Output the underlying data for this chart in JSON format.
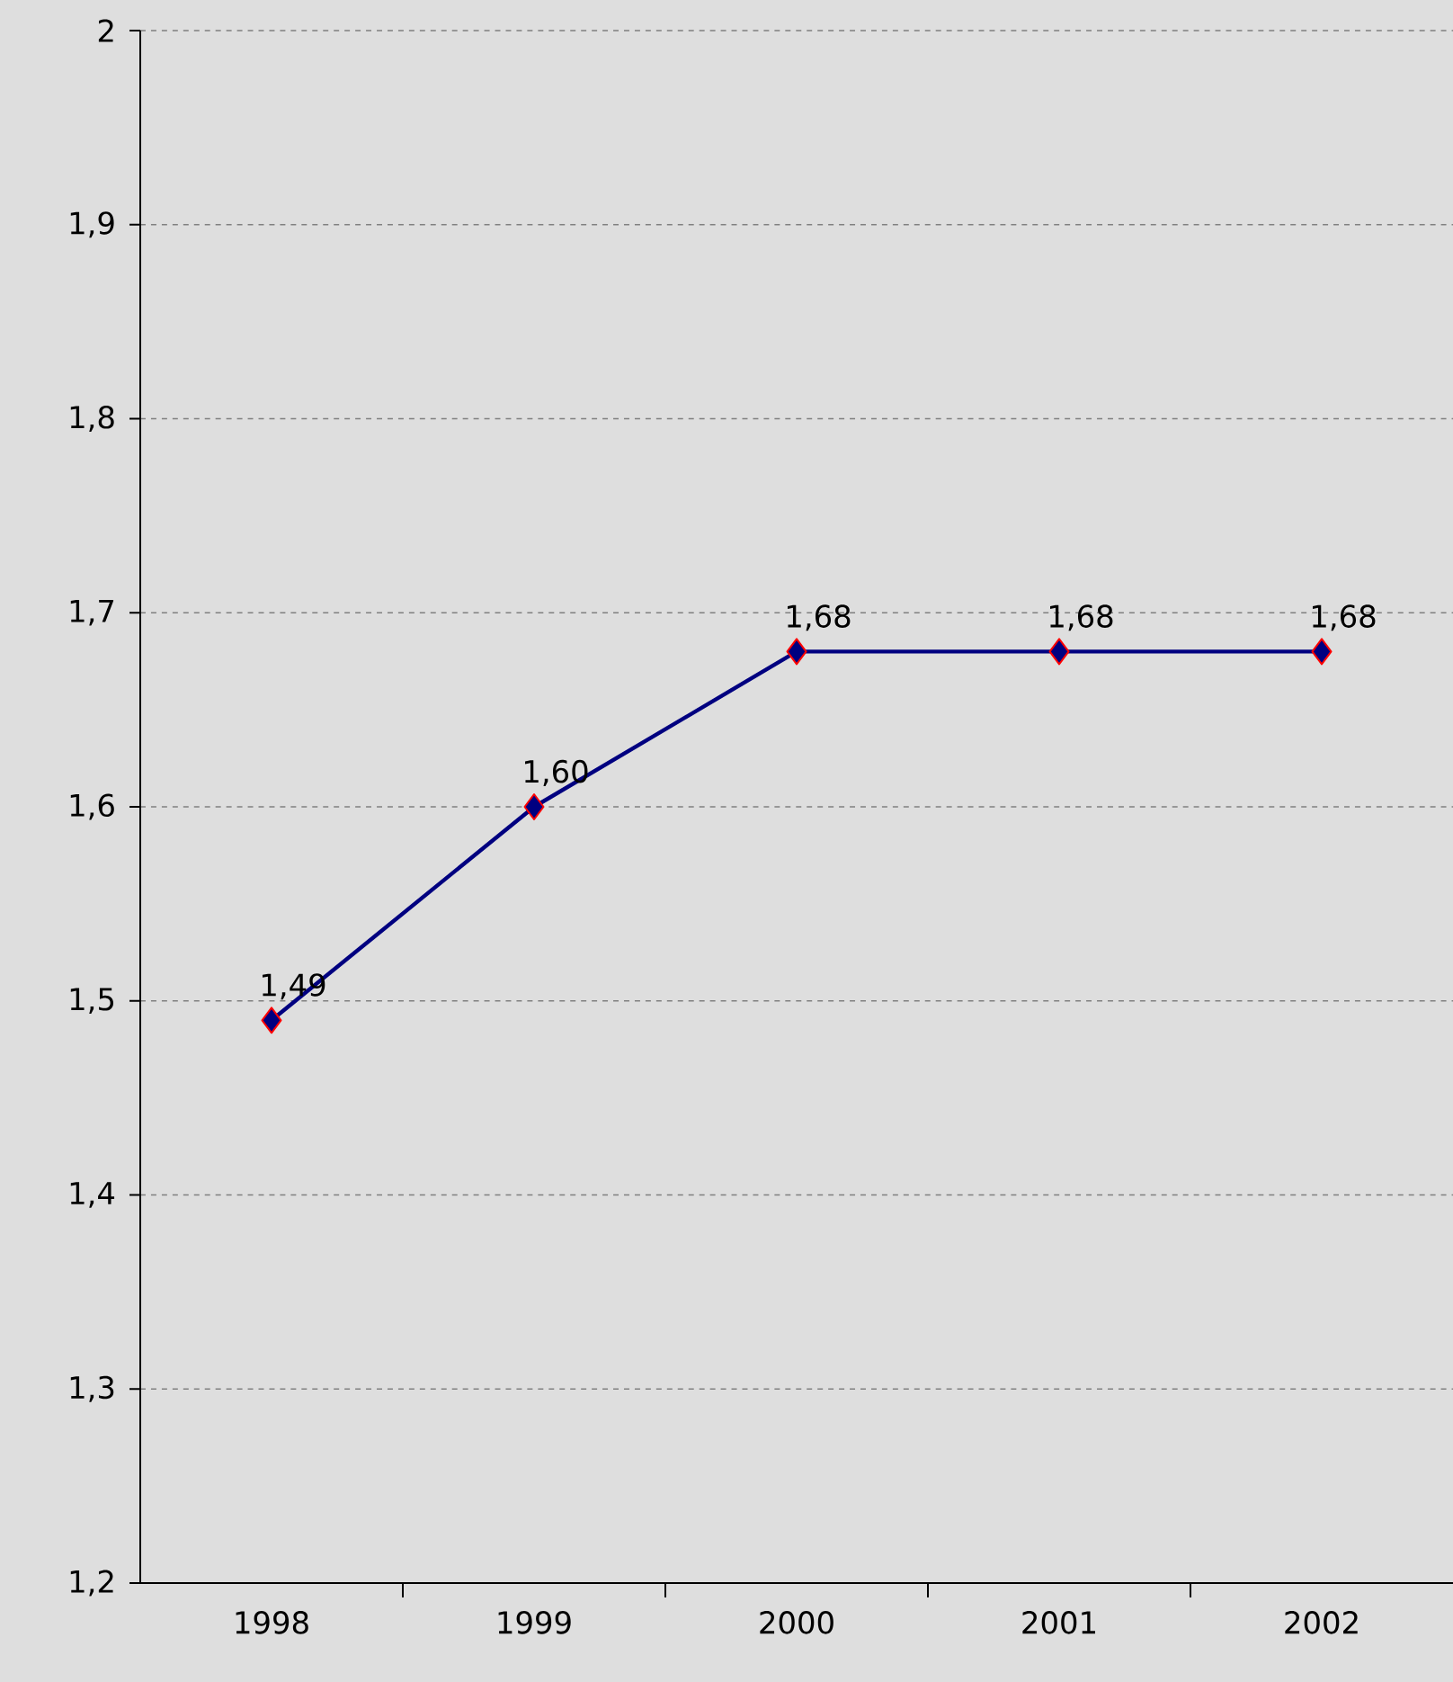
{
  "chart_data": {
    "type": "line",
    "categories": [
      "1998",
      "1999",
      "2000",
      "2001",
      "2002"
    ],
    "series": [
      {
        "color": "#000080",
        "values": [
          1.49,
          1.6,
          1.68,
          1.68,
          1.68
        ],
        "value_labels": [
          "1,49",
          "1,60",
          "1,68",
          "1,68",
          "1,68"
        ]
      }
    ],
    "ylim": [
      1.2,
      2
    ],
    "yticks": [
      {
        "value": 1.2,
        "label": "1,2"
      },
      {
        "value": 1.3,
        "label": "1,3"
      },
      {
        "value": 1.4,
        "label": "1,4"
      },
      {
        "value": 1.5,
        "label": "1,5"
      },
      {
        "value": 1.6,
        "label": "1,6"
      },
      {
        "value": 1.7,
        "label": "1,7"
      },
      {
        "value": 1.8,
        "label": "1,8"
      },
      {
        "value": 1.9,
        "label": "1,9"
      },
      2
    ],
    "grid": "y",
    "marker": "diamond",
    "line_style": "solid"
  }
}
